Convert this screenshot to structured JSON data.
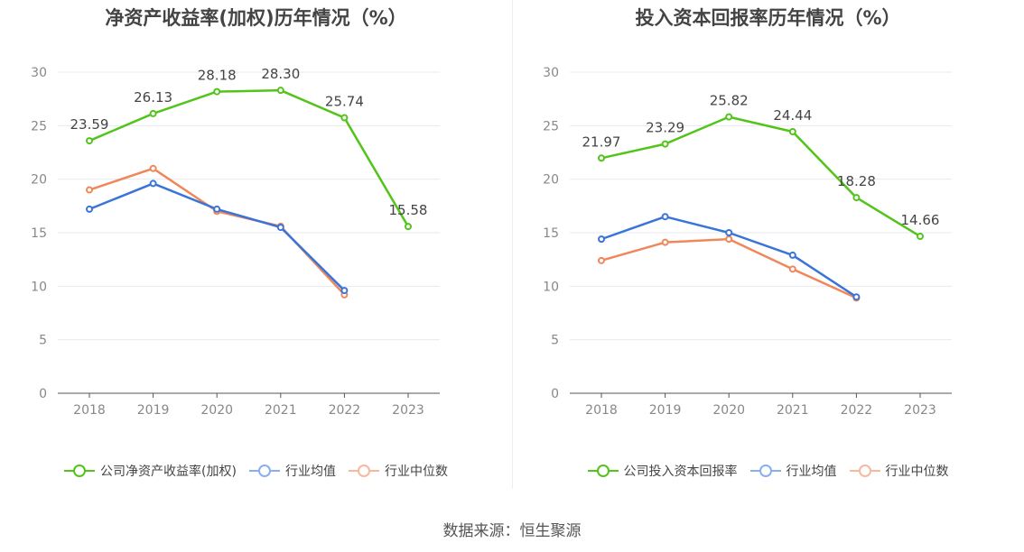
{
  "source": "数据来源：恒生聚源",
  "colors": {
    "company": "#52c41a",
    "avg": "#3a74d8",
    "median": "#f0875a",
    "avg_legend": "#8aaef0",
    "median_legend": "#f6b99d",
    "grid": "#e6e9f0",
    "axis": "#555555",
    "tick": "#888888"
  },
  "chart_data": [
    {
      "type": "line",
      "title": "净资产收益率(加权)历年情况（%）",
      "categories": [
        "2018",
        "2019",
        "2020",
        "2021",
        "2022",
        "2023"
      ],
      "ylim": [
        0,
        30
      ],
      "yticks": [
        0,
        5,
        10,
        15,
        20,
        25,
        30
      ],
      "series": [
        {
          "name": "公司净资产收益率(加权)",
          "values": [
            23.59,
            26.13,
            28.18,
            28.3,
            25.74,
            15.58
          ],
          "labeled": true
        },
        {
          "name": "行业均值",
          "values": [
            17.2,
            19.6,
            17.2,
            15.5,
            9.6,
            null
          ],
          "labeled": false
        },
        {
          "name": "行业中位数",
          "values": [
            19.0,
            21.0,
            17.0,
            15.6,
            9.2,
            null
          ],
          "labeled": false
        }
      ]
    },
    {
      "type": "line",
      "title": "投入资本回报率历年情况（%）",
      "categories": [
        "2018",
        "2019",
        "2020",
        "2021",
        "2022",
        "2023"
      ],
      "ylim": [
        0,
        30
      ],
      "yticks": [
        0,
        5,
        10,
        15,
        20,
        25,
        30
      ],
      "series": [
        {
          "name": "公司投入资本回报率",
          "values": [
            21.97,
            23.29,
            25.82,
            24.44,
            18.28,
            14.66
          ],
          "labeled": true
        },
        {
          "name": "行业均值",
          "values": [
            14.4,
            16.5,
            15.0,
            12.9,
            9.0,
            null
          ],
          "labeled": false
        },
        {
          "name": "行业中位数",
          "values": [
            12.4,
            14.1,
            14.4,
            11.6,
            8.9,
            null
          ],
          "labeled": false
        }
      ]
    }
  ]
}
